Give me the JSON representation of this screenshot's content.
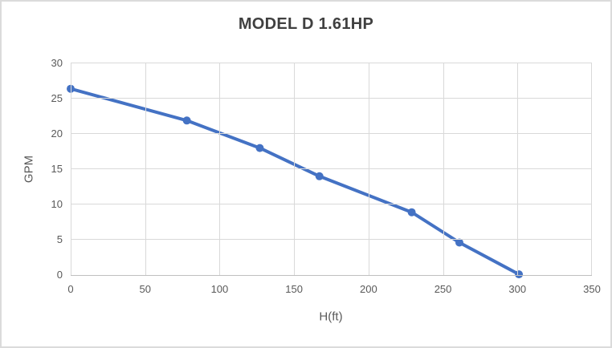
{
  "chart_data": {
    "type": "line",
    "title": "MODEL D 1.61HP",
    "xlabel": "H(ft)",
    "ylabel": "GPM",
    "xlim": [
      0,
      350
    ],
    "ylim": [
      0,
      30
    ],
    "xticks": [
      0,
      50,
      100,
      150,
      200,
      250,
      300,
      350
    ],
    "yticks": [
      0,
      5,
      10,
      15,
      20,
      25,
      30
    ],
    "grid": true,
    "legend": "none",
    "series": [
      {
        "name": "MODEL D 1.61HP",
        "color": "#4472C4",
        "marker": "circle",
        "points": [
          [
            0,
            26.4
          ],
          [
            78,
            21.9
          ],
          [
            127,
            18.0
          ],
          [
            167,
            14.0
          ],
          [
            229,
            8.9
          ],
          [
            261,
            4.6
          ],
          [
            301,
            0.1
          ]
        ]
      }
    ]
  },
  "colors": {
    "line": "#4472C4",
    "title_text": "#404040",
    "axis_text": "#595959",
    "gridline": "#D9D9D9",
    "axis_line": "#BFBFBF",
    "chart_border": "#DBDBDB",
    "background": "#FFFFFF"
  }
}
